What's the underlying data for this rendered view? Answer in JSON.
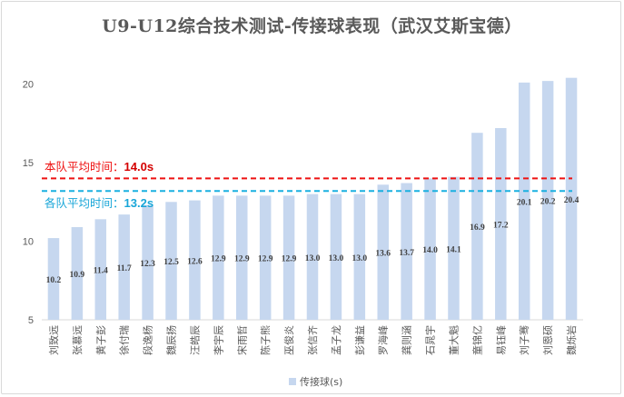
{
  "chart_data": {
    "type": "bar",
    "title": "U9-U12综合技术测试-传接球表现（武汉艾斯宝德）",
    "categories": [
      "刘致远",
      "张慕远",
      "黄子彭",
      "徐付瑞",
      "段逸杨",
      "魏辰扬",
      "汪皓辰",
      "李宇辰",
      "宋雨哲",
      "陈子熊",
      "巫俊炎",
      "张信齐",
      "孟子龙",
      "彭谦益",
      "罗海峰",
      "龚则涵",
      "石晁宇",
      "董大魁",
      "童锦亿",
      "易钰峰",
      "刘子骞",
      "刘恩硕",
      "魏烁岩"
    ],
    "series": [
      {
        "name": "传接球(s)",
        "color": "#c6d7ef",
        "values": [
          10.2,
          10.9,
          11.4,
          11.7,
          12.3,
          12.5,
          12.6,
          12.9,
          12.9,
          12.9,
          12.9,
          13.0,
          13.0,
          13.0,
          13.6,
          13.7,
          14.0,
          14.1,
          16.9,
          17.2,
          20.1,
          20.2,
          20.4
        ]
      }
    ],
    "value_labels": [
      "10.2",
      "10.9",
      "11.4",
      "11.7",
      "12.3",
      "12.5",
      "12.6",
      "12.9",
      "12.9",
      "12.9",
      "12.9",
      "13.0",
      "13.0",
      "13.0",
      "13.6",
      "13.7",
      "14.0",
      "14.1",
      "16.9",
      "17.2",
      "20.1",
      "20.2",
      "20.4"
    ],
    "ylim": [
      5,
      22
    ],
    "yticks": [
      5,
      10,
      15,
      20
    ],
    "ytick_labels": [
      "5",
      "10",
      "15",
      "20"
    ],
    "grid": false,
    "legend_position": "bottom",
    "reference_lines": [
      {
        "label": "本队平均时间：",
        "value_text": "14.0s",
        "value": 14.0,
        "color": "#ee1111",
        "style": "dashed"
      },
      {
        "label": "各队平均时间：",
        "value_text": "13.2s",
        "value": 13.2,
        "color": "#1ab0e0",
        "style": "dashed"
      }
    ]
  }
}
